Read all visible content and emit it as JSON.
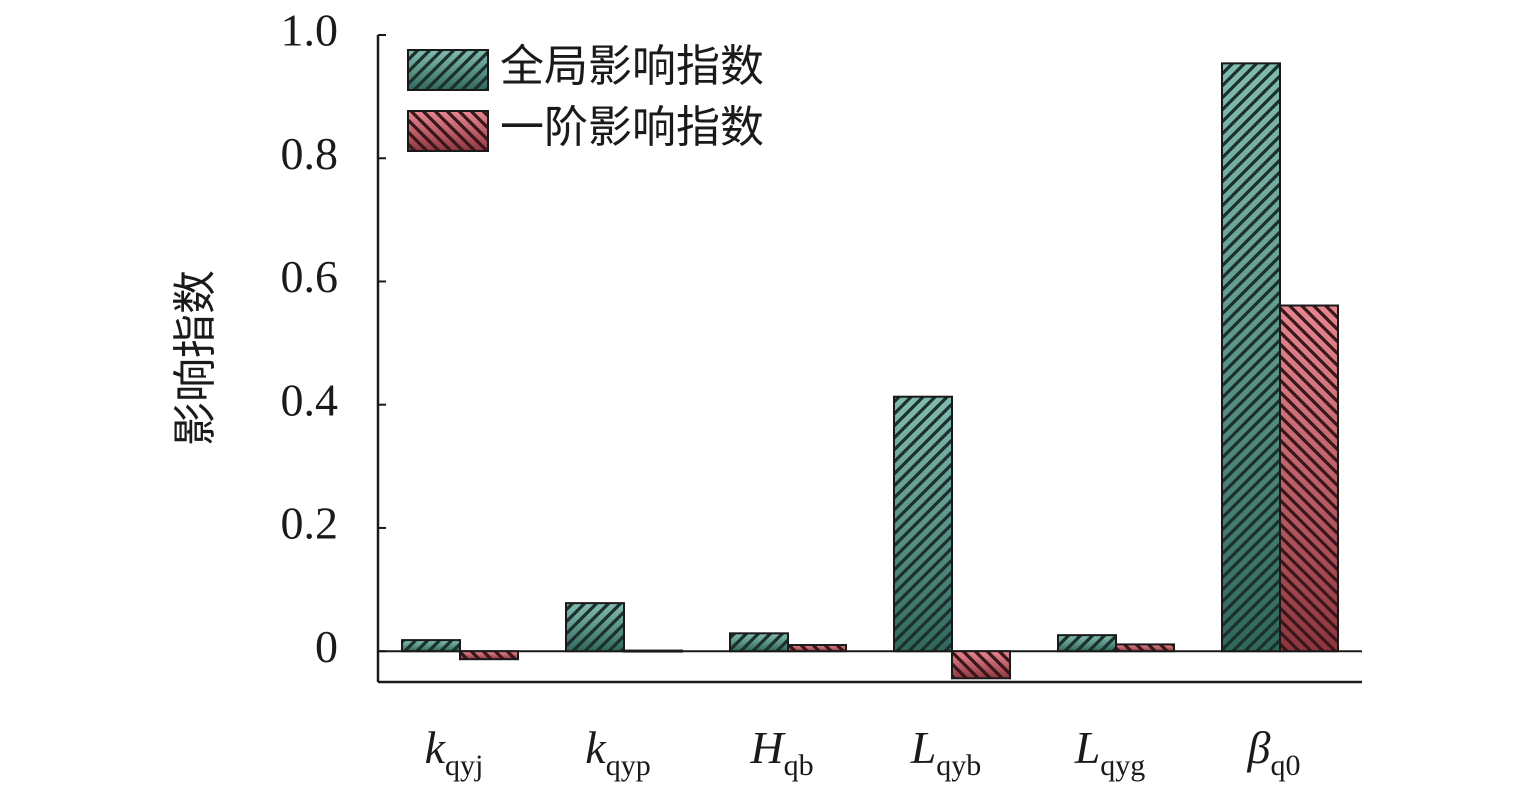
{
  "chart_data": {
    "type": "bar",
    "y_label": "影响指数",
    "categories": [
      "k",
      "k",
      "H",
      "L",
      "L",
      "β"
    ],
    "category_subscripts": [
      "qyj",
      "qyp",
      "qb",
      "qyb",
      "qyg",
      "q0"
    ],
    "series": [
      {
        "name": "全局影响指数",
        "color": "#4a9e8c",
        "values": [
          0.018,
          0.078,
          0.029,
          0.413,
          0.026,
          0.954
        ]
      },
      {
        "name": "一阶影响指数",
        "color": "#d8525f",
        "values": [
          -0.013,
          0.001,
          0.01,
          -0.044,
          0.011,
          0.561
        ]
      }
    ],
    "ylim": [
      -0.05,
      1.0
    ],
    "yticks": [
      0,
      0.2,
      0.4,
      0.6,
      0.8,
      {
        "value": 1,
        "label": "1.0"
      }
    ],
    "legend": "upper-left"
  }
}
